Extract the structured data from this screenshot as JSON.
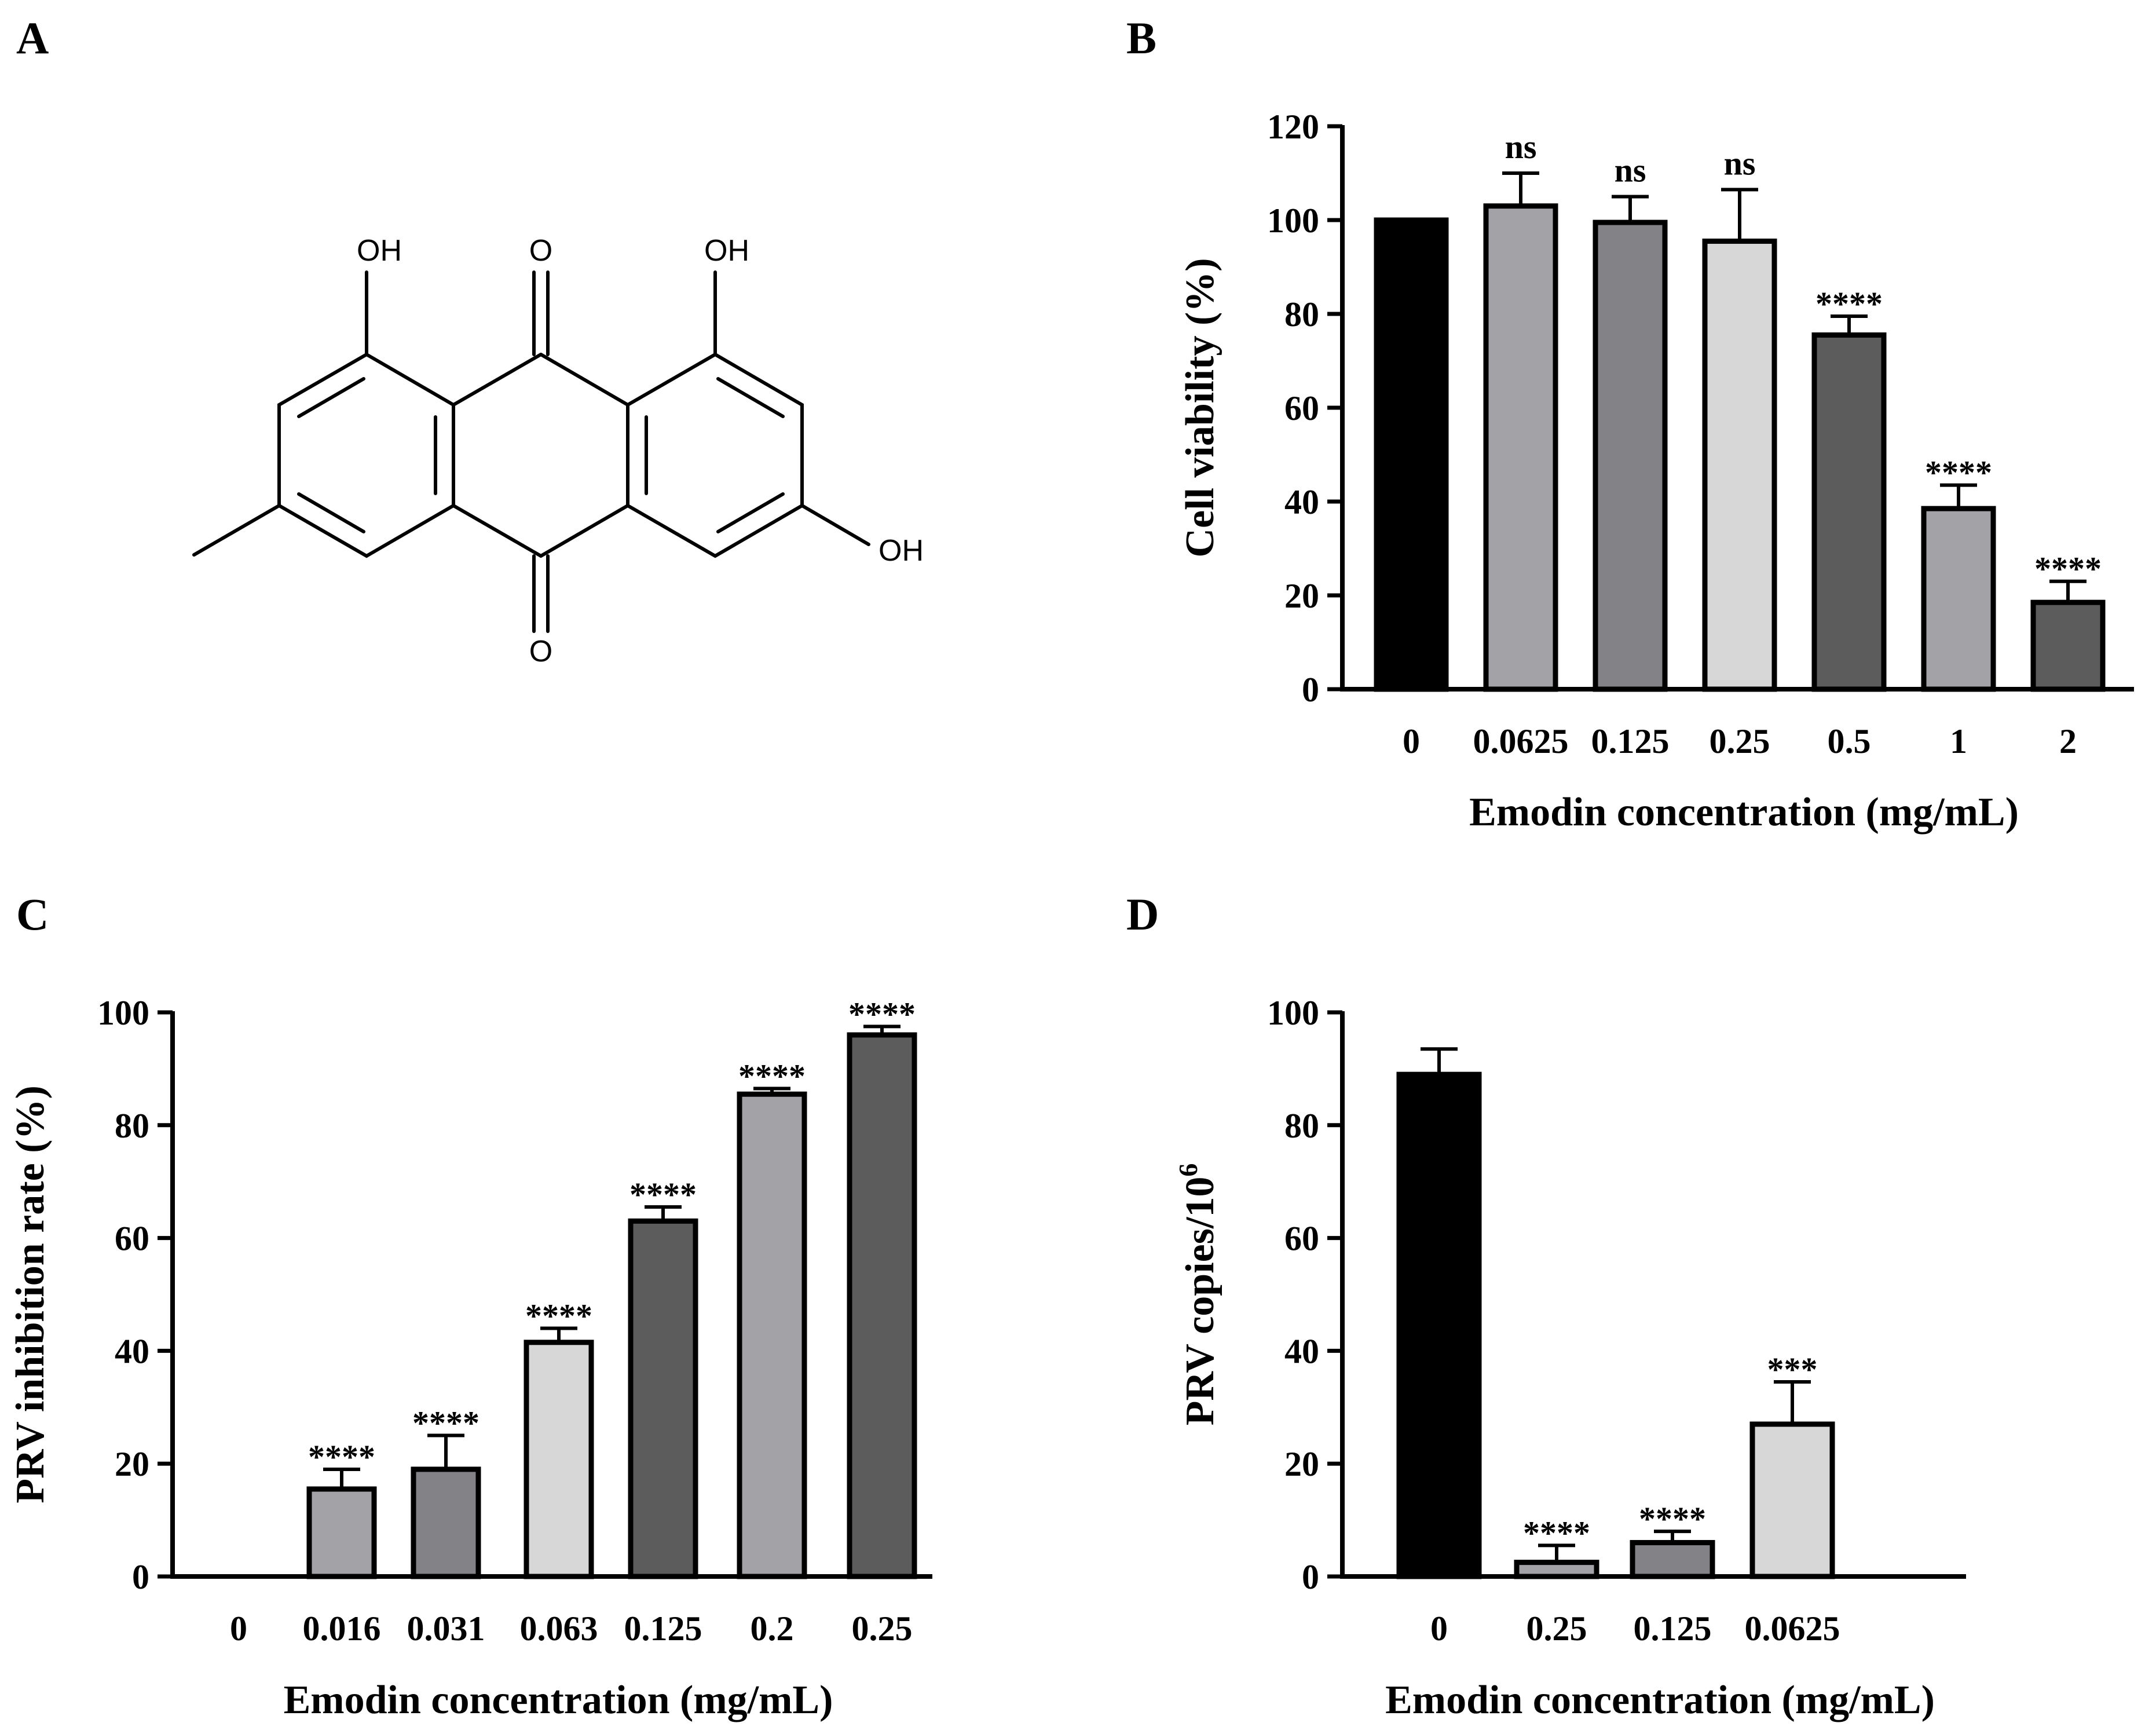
{
  "panels": {
    "A": "A",
    "B": "B",
    "C": "C",
    "D": "D"
  },
  "structure": {
    "name": "Emodin",
    "labels": {
      "oh_top_left": "OH",
      "o_top": "O",
      "oh_top_right": "OH",
      "oh_right": "OH",
      "o_bottom": "O"
    }
  },
  "colors": {
    "black": "#000000",
    "mid_light": "#a3a2a7",
    "mid": "#828287",
    "light": "#d7d7d7",
    "dark": "#5c5c5c"
  },
  "chart_data": [
    {
      "panel": "B",
      "type": "bar",
      "categories": [
        "0",
        "0.0625",
        "0.125",
        "0.25",
        "0.5",
        "1",
        "2"
      ],
      "values": [
        100,
        103,
        99.5,
        95.5,
        75.5,
        38.5,
        18.5
      ],
      "errors": [
        0,
        7,
        5.5,
        11,
        4,
        5,
        4.5
      ],
      "significance": [
        "",
        "ns",
        "ns",
        "ns",
        "****",
        "****",
        "****"
      ],
      "fills": [
        "black",
        "mid_light",
        "mid",
        "light",
        "dark",
        "mid_light",
        "dark"
      ],
      "xlabel": "Emodin concentration (mg/mL)",
      "ylabel": "Cell viability (%)",
      "ylim": [
        0,
        120
      ],
      "yticks": [
        0,
        20,
        40,
        60,
        80,
        100,
        120
      ]
    },
    {
      "panel": "C",
      "type": "bar",
      "categories": [
        "0",
        "0.016",
        "0.031",
        "0.063",
        "0.125",
        "0.2",
        "0.25"
      ],
      "values": [
        0,
        15.5,
        19,
        41.5,
        63,
        85.5,
        96
      ],
      "errors": [
        0,
        3.5,
        6,
        2.5,
        2.5,
        1,
        1.5
      ],
      "significance": [
        "",
        "****",
        "****",
        "****",
        "****",
        "****",
        "****"
      ],
      "fills": [
        "mid_light",
        "mid_light",
        "mid",
        "light",
        "dark",
        "mid_light",
        "dark"
      ],
      "xlabel": "Emodin concentration (mg/mL)",
      "ylabel": "PRV inhibition rate (%)",
      "ylim": [
        0,
        100
      ],
      "yticks": [
        0,
        20,
        40,
        60,
        80,
        100
      ]
    },
    {
      "panel": "D",
      "type": "bar",
      "categories": [
        "0",
        "0.25",
        "0.125",
        "0.0625"
      ],
      "values": [
        89,
        2.5,
        6,
        27
      ],
      "errors": [
        4.5,
        3,
        2,
        7.5
      ],
      "significance": [
        "",
        "****",
        "****",
        "***"
      ],
      "fills": [
        "black",
        "mid_light",
        "mid",
        "light"
      ],
      "xlabel": "Emodin concentration (mg/mL)",
      "ylabel": "PRV copies/10",
      "ylabel_sup": "6",
      "ylim": [
        0,
        100
      ],
      "yticks": [
        0,
        20,
        40,
        60,
        80,
        100
      ]
    }
  ]
}
